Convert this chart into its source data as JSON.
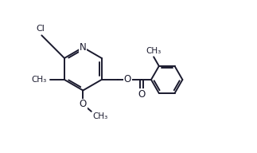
{
  "bg_color": "#ffffff",
  "line_color": "#1a1a2e",
  "line_width": 1.4,
  "fig_width": 3.23,
  "fig_height": 1.92,
  "dpi": 100,
  "xlim": [
    0,
    10
  ],
  "ylim": [
    0,
    6
  ]
}
